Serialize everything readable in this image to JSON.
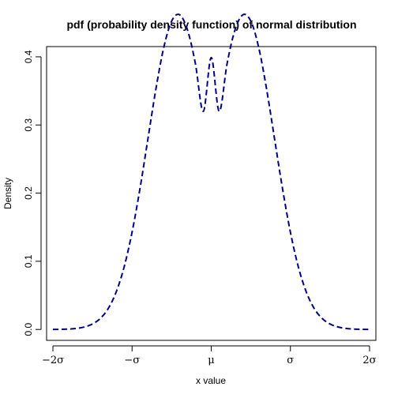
{
  "chart_data": {
    "type": "line",
    "title": "pdf (probability density function) of normal distribution",
    "xlabel": "x value",
    "ylabel": "Density",
    "xlim": [
      -2.08,
      2.08
    ],
    "ylim": [
      -0.016,
      0.415
    ],
    "x_ticks": [
      {
        "value": -2,
        "label": "−2σ"
      },
      {
        "value": -1,
        "label": "−σ"
      },
      {
        "value": 0,
        "label": "μ"
      },
      {
        "value": 1,
        "label": "σ"
      },
      {
        "value": 2,
        "label": "2σ"
      }
    ],
    "y_ticks": [
      {
        "value": 0.0,
        "label": "0.0"
      },
      {
        "value": 0.1,
        "label": "0.1"
      },
      {
        "value": 0.2,
        "label": "0.2"
      },
      {
        "value": 0.3,
        "label": "0.3"
      },
      {
        "value": 0.4,
        "label": "0.4"
      }
    ],
    "grid": false,
    "legend": "none",
    "series": [
      {
        "color": "#00008b",
        "line_style": "dashed",
        "x": [
          -2.0,
          -1.9,
          -1.8,
          -1.7,
          -1.6,
          -1.5,
          -1.4,
          -1.3,
          -1.2,
          -1.1,
          -1.0,
          -0.9,
          -0.8,
          -0.7,
          -0.6,
          -0.5,
          -0.4,
          -0.3,
          -0.2,
          -0.1,
          0.0,
          0.1,
          0.2,
          0.3,
          0.4,
          0.5,
          0.6,
          0.7,
          0.8,
          0.9,
          1.0,
          1.1,
          1.2,
          1.3,
          1.4,
          1.5,
          1.6,
          1.7,
          1.8,
          1.9,
          2.0
        ],
        "y": [
          0.0001,
          0.0002,
          0.0006,
          0.0015,
          0.0037,
          0.008,
          0.0163,
          0.0309,
          0.0552,
          0.0919,
          0.1428,
          0.2068,
          0.2795,
          0.3521,
          0.4135,
          0.4524,
          0.4617,
          0.4394,
          0.3899,
          0.32,
          0.3989,
          0.32,
          0.3899,
          0.4394,
          0.4617,
          0.4524,
          0.4135,
          0.3521,
          0.2795,
          0.2068,
          0.1428,
          0.0919,
          0.0552,
          0.0309,
          0.0163,
          0.008,
          0.0037,
          0.0015,
          0.0006,
          0.0002,
          0.0001
        ]
      }
    ]
  }
}
